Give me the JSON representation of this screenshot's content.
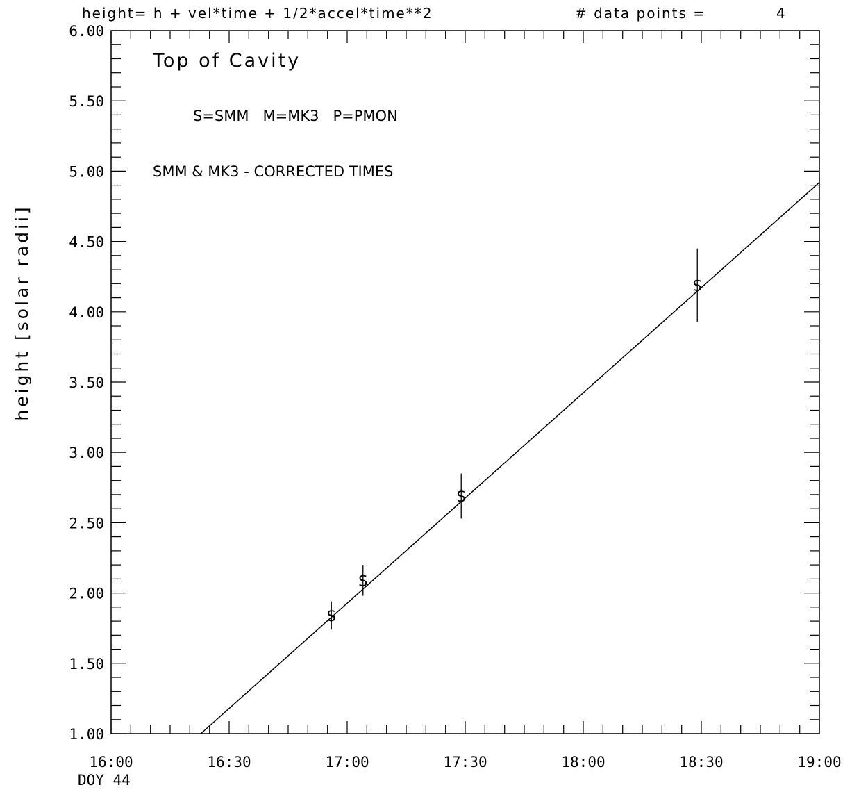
{
  "header": {
    "equation": "height= h + vel*time + 1/2*accel*time**2",
    "count_label": "# data points =",
    "count_value": "4"
  },
  "chart_data": {
    "type": "scatter",
    "title": "Top of Cavity",
    "annotations": [
      "S=SMM   M=MK3   P=PMON",
      "SMM & MK3 - CORRECTED TIMES"
    ],
    "ylabel": "height [solar radii]",
    "xlabel": "",
    "x_sublabel": "DOY 44",
    "x_unit": "hours",
    "xlim": [
      16.0,
      19.0
    ],
    "ylim": [
      1.0,
      6.0
    ],
    "x_ticks": [
      16.0,
      16.5,
      17.0,
      17.5,
      18.0,
      18.5,
      19.0
    ],
    "x_tick_labels": [
      "16:00",
      "16:30",
      "17:00",
      "17:30",
      "18:00",
      "18:30",
      "19:00"
    ],
    "y_ticks": [
      1.0,
      1.5,
      2.0,
      2.5,
      3.0,
      3.5,
      4.0,
      4.5,
      5.0,
      5.5,
      6.0
    ],
    "y_tick_labels": [
      "1.00",
      "1.50",
      "2.00",
      "2.50",
      "3.00",
      "3.50",
      "4.00",
      "4.50",
      "5.00",
      "5.50",
      "6.00"
    ],
    "grid": false,
    "series": [
      {
        "marker": "S",
        "x": [
          16.933,
          17.067,
          17.483,
          18.483
        ],
        "y": [
          1.84,
          2.09,
          2.69,
          4.19
        ],
        "yerr": [
          0.1,
          0.11,
          0.16,
          0.26
        ]
      }
    ],
    "fit_line": {
      "x": [
        16.38,
        19.0
      ],
      "y": [
        1.0,
        4.92
      ]
    }
  }
}
